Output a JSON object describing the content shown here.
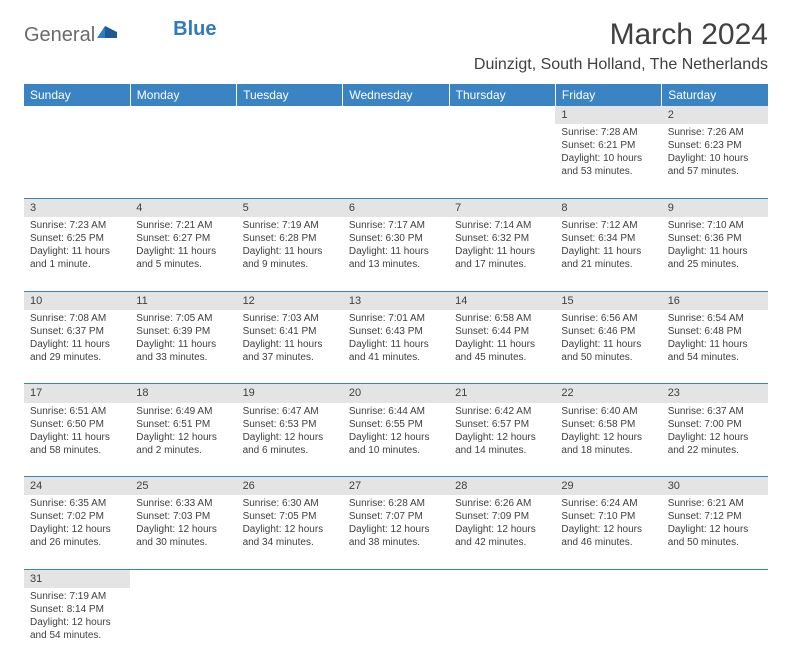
{
  "logo": {
    "text1": "General",
    "text2": "Blue"
  },
  "title": "March 2024",
  "location": "Duinzigt, South Holland, The Netherlands",
  "colors": {
    "header_bg": "#3b84c4",
    "daynum_bg": "#e4e4e4",
    "rule": "#3b84c4",
    "text": "#404040"
  },
  "weekdays": [
    "Sunday",
    "Monday",
    "Tuesday",
    "Wednesday",
    "Thursday",
    "Friday",
    "Saturday"
  ],
  "weeks": [
    [
      null,
      null,
      null,
      null,
      null,
      {
        "n": "1",
        "sr": "Sunrise: 7:28 AM",
        "ss": "Sunset: 6:21 PM",
        "d1": "Daylight: 10 hours",
        "d2": "and 53 minutes."
      },
      {
        "n": "2",
        "sr": "Sunrise: 7:26 AM",
        "ss": "Sunset: 6:23 PM",
        "d1": "Daylight: 10 hours",
        "d2": "and 57 minutes."
      }
    ],
    [
      {
        "n": "3",
        "sr": "Sunrise: 7:23 AM",
        "ss": "Sunset: 6:25 PM",
        "d1": "Daylight: 11 hours",
        "d2": "and 1 minute."
      },
      {
        "n": "4",
        "sr": "Sunrise: 7:21 AM",
        "ss": "Sunset: 6:27 PM",
        "d1": "Daylight: 11 hours",
        "d2": "and 5 minutes."
      },
      {
        "n": "5",
        "sr": "Sunrise: 7:19 AM",
        "ss": "Sunset: 6:28 PM",
        "d1": "Daylight: 11 hours",
        "d2": "and 9 minutes."
      },
      {
        "n": "6",
        "sr": "Sunrise: 7:17 AM",
        "ss": "Sunset: 6:30 PM",
        "d1": "Daylight: 11 hours",
        "d2": "and 13 minutes."
      },
      {
        "n": "7",
        "sr": "Sunrise: 7:14 AM",
        "ss": "Sunset: 6:32 PM",
        "d1": "Daylight: 11 hours",
        "d2": "and 17 minutes."
      },
      {
        "n": "8",
        "sr": "Sunrise: 7:12 AM",
        "ss": "Sunset: 6:34 PM",
        "d1": "Daylight: 11 hours",
        "d2": "and 21 minutes."
      },
      {
        "n": "9",
        "sr": "Sunrise: 7:10 AM",
        "ss": "Sunset: 6:36 PM",
        "d1": "Daylight: 11 hours",
        "d2": "and 25 minutes."
      }
    ],
    [
      {
        "n": "10",
        "sr": "Sunrise: 7:08 AM",
        "ss": "Sunset: 6:37 PM",
        "d1": "Daylight: 11 hours",
        "d2": "and 29 minutes."
      },
      {
        "n": "11",
        "sr": "Sunrise: 7:05 AM",
        "ss": "Sunset: 6:39 PM",
        "d1": "Daylight: 11 hours",
        "d2": "and 33 minutes."
      },
      {
        "n": "12",
        "sr": "Sunrise: 7:03 AM",
        "ss": "Sunset: 6:41 PM",
        "d1": "Daylight: 11 hours",
        "d2": "and 37 minutes."
      },
      {
        "n": "13",
        "sr": "Sunrise: 7:01 AM",
        "ss": "Sunset: 6:43 PM",
        "d1": "Daylight: 11 hours",
        "d2": "and 41 minutes."
      },
      {
        "n": "14",
        "sr": "Sunrise: 6:58 AM",
        "ss": "Sunset: 6:44 PM",
        "d1": "Daylight: 11 hours",
        "d2": "and 45 minutes."
      },
      {
        "n": "15",
        "sr": "Sunrise: 6:56 AM",
        "ss": "Sunset: 6:46 PM",
        "d1": "Daylight: 11 hours",
        "d2": "and 50 minutes."
      },
      {
        "n": "16",
        "sr": "Sunrise: 6:54 AM",
        "ss": "Sunset: 6:48 PM",
        "d1": "Daylight: 11 hours",
        "d2": "and 54 minutes."
      }
    ],
    [
      {
        "n": "17",
        "sr": "Sunrise: 6:51 AM",
        "ss": "Sunset: 6:50 PM",
        "d1": "Daylight: 11 hours",
        "d2": "and 58 minutes."
      },
      {
        "n": "18",
        "sr": "Sunrise: 6:49 AM",
        "ss": "Sunset: 6:51 PM",
        "d1": "Daylight: 12 hours",
        "d2": "and 2 minutes."
      },
      {
        "n": "19",
        "sr": "Sunrise: 6:47 AM",
        "ss": "Sunset: 6:53 PM",
        "d1": "Daylight: 12 hours",
        "d2": "and 6 minutes."
      },
      {
        "n": "20",
        "sr": "Sunrise: 6:44 AM",
        "ss": "Sunset: 6:55 PM",
        "d1": "Daylight: 12 hours",
        "d2": "and 10 minutes."
      },
      {
        "n": "21",
        "sr": "Sunrise: 6:42 AM",
        "ss": "Sunset: 6:57 PM",
        "d1": "Daylight: 12 hours",
        "d2": "and 14 minutes."
      },
      {
        "n": "22",
        "sr": "Sunrise: 6:40 AM",
        "ss": "Sunset: 6:58 PM",
        "d1": "Daylight: 12 hours",
        "d2": "and 18 minutes."
      },
      {
        "n": "23",
        "sr": "Sunrise: 6:37 AM",
        "ss": "Sunset: 7:00 PM",
        "d1": "Daylight: 12 hours",
        "d2": "and 22 minutes."
      }
    ],
    [
      {
        "n": "24",
        "sr": "Sunrise: 6:35 AM",
        "ss": "Sunset: 7:02 PM",
        "d1": "Daylight: 12 hours",
        "d2": "and 26 minutes."
      },
      {
        "n": "25",
        "sr": "Sunrise: 6:33 AM",
        "ss": "Sunset: 7:03 PM",
        "d1": "Daylight: 12 hours",
        "d2": "and 30 minutes."
      },
      {
        "n": "26",
        "sr": "Sunrise: 6:30 AM",
        "ss": "Sunset: 7:05 PM",
        "d1": "Daylight: 12 hours",
        "d2": "and 34 minutes."
      },
      {
        "n": "27",
        "sr": "Sunrise: 6:28 AM",
        "ss": "Sunset: 7:07 PM",
        "d1": "Daylight: 12 hours",
        "d2": "and 38 minutes."
      },
      {
        "n": "28",
        "sr": "Sunrise: 6:26 AM",
        "ss": "Sunset: 7:09 PM",
        "d1": "Daylight: 12 hours",
        "d2": "and 42 minutes."
      },
      {
        "n": "29",
        "sr": "Sunrise: 6:24 AM",
        "ss": "Sunset: 7:10 PM",
        "d1": "Daylight: 12 hours",
        "d2": "and 46 minutes."
      },
      {
        "n": "30",
        "sr": "Sunrise: 6:21 AM",
        "ss": "Sunset: 7:12 PM",
        "d1": "Daylight: 12 hours",
        "d2": "and 50 minutes."
      }
    ],
    [
      {
        "n": "31",
        "sr": "Sunrise: 7:19 AM",
        "ss": "Sunset: 8:14 PM",
        "d1": "Daylight: 12 hours",
        "d2": "and 54 minutes."
      },
      null,
      null,
      null,
      null,
      null,
      null
    ]
  ]
}
